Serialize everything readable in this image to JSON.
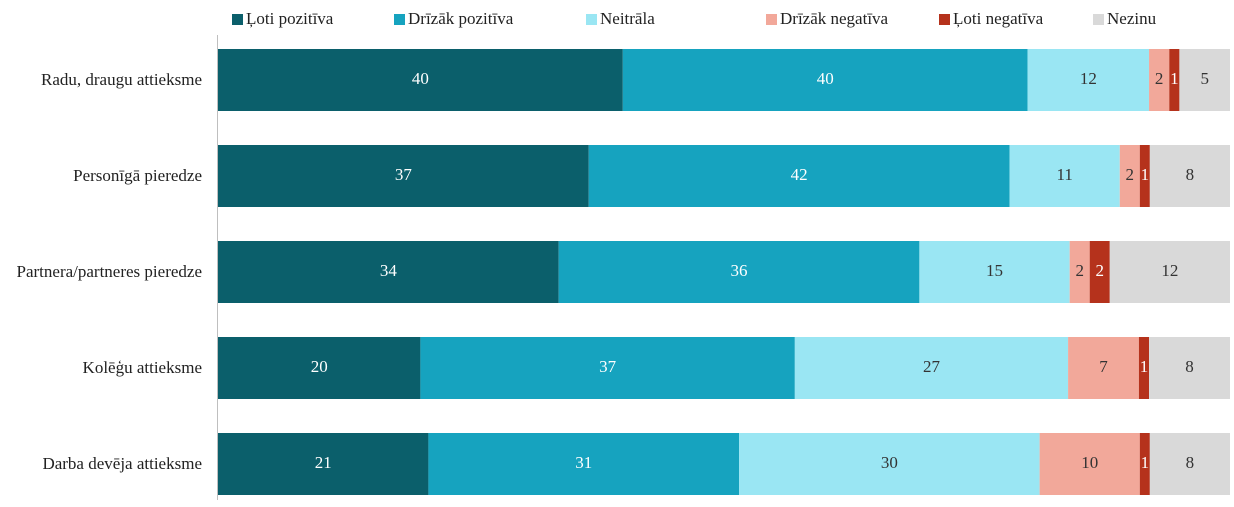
{
  "chart_data": {
    "type": "stacked_bar",
    "orientation": "horizontal",
    "categories": [
      "Radu, draugu attieksme",
      "Personīgā pieredze",
      "Partnera/partneres pieredze",
      "Kolēģu attieksme",
      "Darba devēja attieksme"
    ],
    "series": [
      {
        "name": "Ļoti pozitīva",
        "color": "#0b5f6b",
        "values": [
          40,
          37,
          34,
          20,
          21
        ]
      },
      {
        "name": "Drīzāk pozitīva",
        "color": "#16a3bf",
        "values": [
          40,
          42,
          36,
          37,
          31
        ]
      },
      {
        "name": "Neitrāla",
        "color": "#9ae6f3",
        "values": [
          12,
          11,
          15,
          27,
          30
        ]
      },
      {
        "name": "Drīzāk negatīva",
        "color": "#f2a89a",
        "values": [
          2,
          2,
          2,
          7,
          10
        ]
      },
      {
        "name": "Ļoti negatīva",
        "color": "#b5321c",
        "values": [
          1,
          1,
          2,
          1,
          1
        ]
      },
      {
        "name": "Nezinu",
        "color": "#d9d9d9",
        "values": [
          5,
          8,
          12,
          8,
          8
        ]
      }
    ],
    "legend": "top"
  }
}
